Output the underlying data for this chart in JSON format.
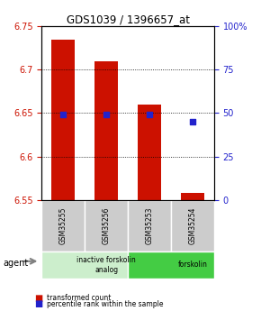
{
  "title": "GDS1039 / 1396657_at",
  "samples": [
    "GSM35255",
    "GSM35256",
    "GSM35253",
    "GSM35254"
  ],
  "bar_values": [
    6.735,
    6.71,
    6.66,
    6.558
  ],
  "bar_base": 6.55,
  "blue_dot_values": [
    6.648,
    6.648,
    6.648,
    6.64
  ],
  "ylim": [
    6.55,
    6.75
  ],
  "yticks_left": [
    6.55,
    6.6,
    6.65,
    6.7,
    6.75
  ],
  "yticks_right": [
    0,
    25,
    50,
    75,
    100
  ],
  "yticks_right_labels": [
    "0",
    "25",
    "50",
    "75",
    "100%"
  ],
  "bar_color": "#cc1100",
  "blue_color": "#2222cc",
  "bar_width": 0.55,
  "groups": [
    {
      "label": "inactive forskolin\nanalog",
      "start": 0,
      "end": 2,
      "color": "#cceecc"
    },
    {
      "label": "forskolin",
      "start": 2,
      "end": 4,
      "color": "#44cc44"
    }
  ],
  "agent_label": "agent",
  "legend_red": "transformed count",
  "legend_blue": "percentile rank within the sample",
  "grid_color": "#000000",
  "background_color": "#ffffff",
  "title_color": "#000000",
  "left_axis_color": "#cc1100",
  "right_axis_color": "#2222cc"
}
